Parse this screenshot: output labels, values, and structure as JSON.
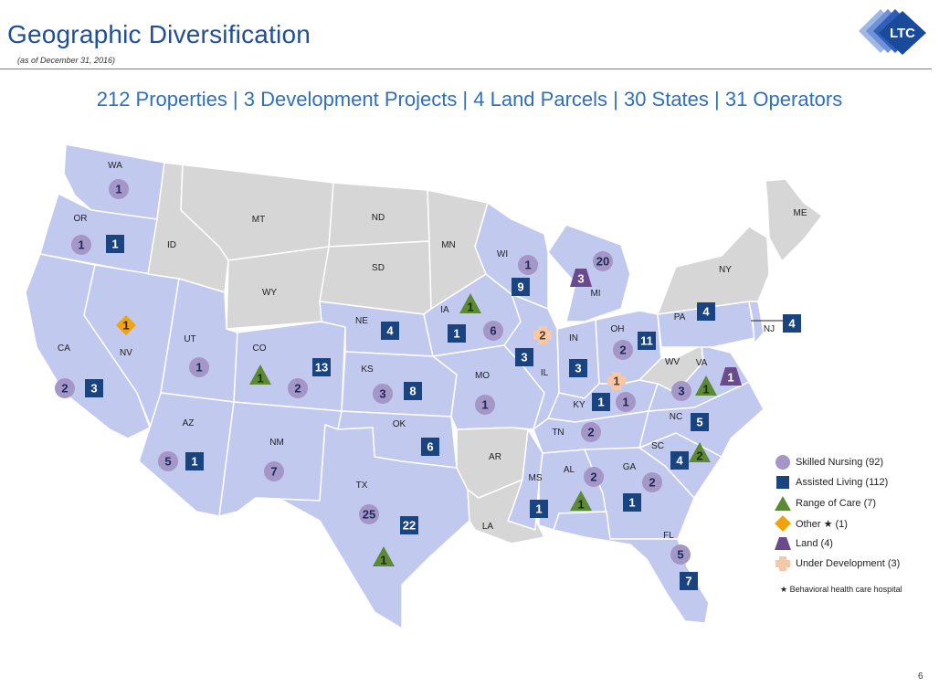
{
  "header": {
    "title": "Geographic Diversification",
    "subtitle": "(as of December 31, 2016)",
    "logo_text": "LTC"
  },
  "headline": "212 Properties | 3 Development Projects | 4 Land Parcels | 30 States | 31 Operators",
  "colors": {
    "covered_state": "#c2c9ee",
    "uncovered_state": "#d6d6d6",
    "skilled_nursing": "#a496c6",
    "assisted_living": "#1a4480",
    "range_of_care": "#5c8a34",
    "other": "#f0a30a",
    "land": "#6a4a8c",
    "under_development": "#f6c8a8"
  },
  "states": [
    {
      "abbr": "WA",
      "covered": true
    },
    {
      "abbr": "OR",
      "covered": true
    },
    {
      "abbr": "CA",
      "covered": true
    },
    {
      "abbr": "NV",
      "covered": true
    },
    {
      "abbr": "ID",
      "covered": false
    },
    {
      "abbr": "MT",
      "covered": false
    },
    {
      "abbr": "WY",
      "covered": false
    },
    {
      "abbr": "UT",
      "covered": true
    },
    {
      "abbr": "AZ",
      "covered": true
    },
    {
      "abbr": "CO",
      "covered": true
    },
    {
      "abbr": "NM",
      "covered": true
    },
    {
      "abbr": "ND",
      "covered": false
    },
    {
      "abbr": "SD",
      "covered": false
    },
    {
      "abbr": "NE",
      "covered": true
    },
    {
      "abbr": "KS",
      "covered": true
    },
    {
      "abbr": "OK",
      "covered": true
    },
    {
      "abbr": "TX",
      "covered": true
    },
    {
      "abbr": "MN",
      "covered": false
    },
    {
      "abbr": "IA",
      "covered": true
    },
    {
      "abbr": "MO",
      "covered": true
    },
    {
      "abbr": "AR",
      "covered": false
    },
    {
      "abbr": "LA",
      "covered": false
    },
    {
      "abbr": "WI",
      "covered": true
    },
    {
      "abbr": "IL",
      "covered": true
    },
    {
      "abbr": "MI",
      "covered": true
    },
    {
      "abbr": "IN",
      "covered": true
    },
    {
      "abbr": "OH",
      "covered": true
    },
    {
      "abbr": "KY",
      "covered": true
    },
    {
      "abbr": "TN",
      "covered": true
    },
    {
      "abbr": "MS",
      "covered": true
    },
    {
      "abbr": "AL",
      "covered": true
    },
    {
      "abbr": "GA",
      "covered": true
    },
    {
      "abbr": "FL",
      "covered": true
    },
    {
      "abbr": "SC",
      "covered": true
    },
    {
      "abbr": "NC",
      "covered": true
    },
    {
      "abbr": "VA",
      "covered": true
    },
    {
      "abbr": "WV",
      "covered": false
    },
    {
      "abbr": "PA",
      "covered": true
    },
    {
      "abbr": "NY",
      "covered": false
    },
    {
      "abbr": "NJ",
      "covered": true
    },
    {
      "abbr": "ME",
      "covered": false
    }
  ],
  "markers": [
    {
      "state": "WA",
      "type": "skilled_nursing",
      "value": "1"
    },
    {
      "state": "OR",
      "type": "skilled_nursing",
      "value": "1"
    },
    {
      "state": "OR",
      "type": "assisted_living",
      "value": "1"
    },
    {
      "state": "CA",
      "type": "skilled_nursing",
      "value": "2"
    },
    {
      "state": "CA",
      "type": "assisted_living",
      "value": "3"
    },
    {
      "state": "NV",
      "type": "other",
      "value": "1"
    },
    {
      "state": "UT",
      "type": "skilled_nursing",
      "value": "1"
    },
    {
      "state": "CO",
      "type": "range_of_care",
      "value": "1"
    },
    {
      "state": "CO",
      "type": "skilled_nursing",
      "value": "2"
    },
    {
      "state": "CO",
      "type": "assisted_living",
      "value": "13"
    },
    {
      "state": "AZ",
      "type": "skilled_nursing",
      "value": "5"
    },
    {
      "state": "AZ",
      "type": "assisted_living",
      "value": "1"
    },
    {
      "state": "NM",
      "type": "skilled_nursing",
      "value": "7"
    },
    {
      "state": "NE",
      "type": "assisted_living",
      "value": "4"
    },
    {
      "state": "KS",
      "type": "skilled_nursing",
      "value": "3"
    },
    {
      "state": "KS",
      "type": "assisted_living",
      "value": "8"
    },
    {
      "state": "OK",
      "type": "assisted_living",
      "value": "6"
    },
    {
      "state": "TX",
      "type": "skilled_nursing",
      "value": "25"
    },
    {
      "state": "TX",
      "type": "assisted_living",
      "value": "22"
    },
    {
      "state": "TX",
      "type": "range_of_care",
      "value": "1"
    },
    {
      "state": "IA",
      "type": "range_of_care",
      "value": "1"
    },
    {
      "state": "IA",
      "type": "assisted_living",
      "value": "1"
    },
    {
      "state": "IA",
      "type": "skilled_nursing",
      "value": "6"
    },
    {
      "state": "MO",
      "type": "skilled_nursing",
      "value": "1"
    },
    {
      "state": "WI",
      "type": "skilled_nursing",
      "value": "1"
    },
    {
      "state": "WI",
      "type": "assisted_living",
      "value": "9"
    },
    {
      "state": "MI",
      "type": "land",
      "value": "3"
    },
    {
      "state": "MI",
      "type": "skilled_nursing",
      "value": "20"
    },
    {
      "state": "IL",
      "type": "under_development",
      "value": "2"
    },
    {
      "state": "IL",
      "type": "assisted_living",
      "value": "3"
    },
    {
      "state": "IN",
      "type": "assisted_living",
      "value": "3"
    },
    {
      "state": "OH",
      "type": "skilled_nursing",
      "value": "2"
    },
    {
      "state": "OH",
      "type": "assisted_living",
      "value": "11"
    },
    {
      "state": "KY",
      "type": "under_development",
      "value": "1"
    },
    {
      "state": "KY",
      "type": "assisted_living",
      "value": "1"
    },
    {
      "state": "KY",
      "type": "skilled_nursing",
      "value": "1"
    },
    {
      "state": "PA",
      "type": "assisted_living",
      "value": "4"
    },
    {
      "state": "NJ",
      "type": "assisted_living",
      "value": "4"
    },
    {
      "state": "VA",
      "type": "skilled_nursing",
      "value": "3"
    },
    {
      "state": "VA",
      "type": "range_of_care",
      "value": "1"
    },
    {
      "state": "VA",
      "type": "land",
      "value": "1"
    },
    {
      "state": "TN",
      "type": "skilled_nursing",
      "value": "2"
    },
    {
      "state": "NC",
      "type": "assisted_living",
      "value": "5"
    },
    {
      "state": "SC",
      "type": "assisted_living",
      "value": "4"
    },
    {
      "state": "SC",
      "type": "range_of_care",
      "value": "2"
    },
    {
      "state": "MS",
      "type": "assisted_living",
      "value": "1"
    },
    {
      "state": "AL",
      "type": "skilled_nursing",
      "value": "2"
    },
    {
      "state": "AL",
      "type": "range_of_care",
      "value": "1"
    },
    {
      "state": "GA",
      "type": "skilled_nursing",
      "value": "2"
    },
    {
      "state": "GA",
      "type": "assisted_living",
      "value": "1"
    },
    {
      "state": "FL",
      "type": "skilled_nursing",
      "value": "5"
    },
    {
      "state": "FL",
      "type": "assisted_living",
      "value": "7"
    }
  ],
  "legend": [
    {
      "type": "skilled_nursing",
      "label": "Skilled Nursing (92)"
    },
    {
      "type": "assisted_living",
      "label": "Assisted Living (112)"
    },
    {
      "type": "range_of_care",
      "label": "Range of Care (7)"
    },
    {
      "type": "other",
      "label": "Other ★ (1)"
    },
    {
      "type": "land",
      "label": "Land (4)"
    },
    {
      "type": "under_development",
      "label": "Under Development (3)"
    }
  ],
  "footnote": "★ Behavioral health care hospital",
  "page_number": "6"
}
